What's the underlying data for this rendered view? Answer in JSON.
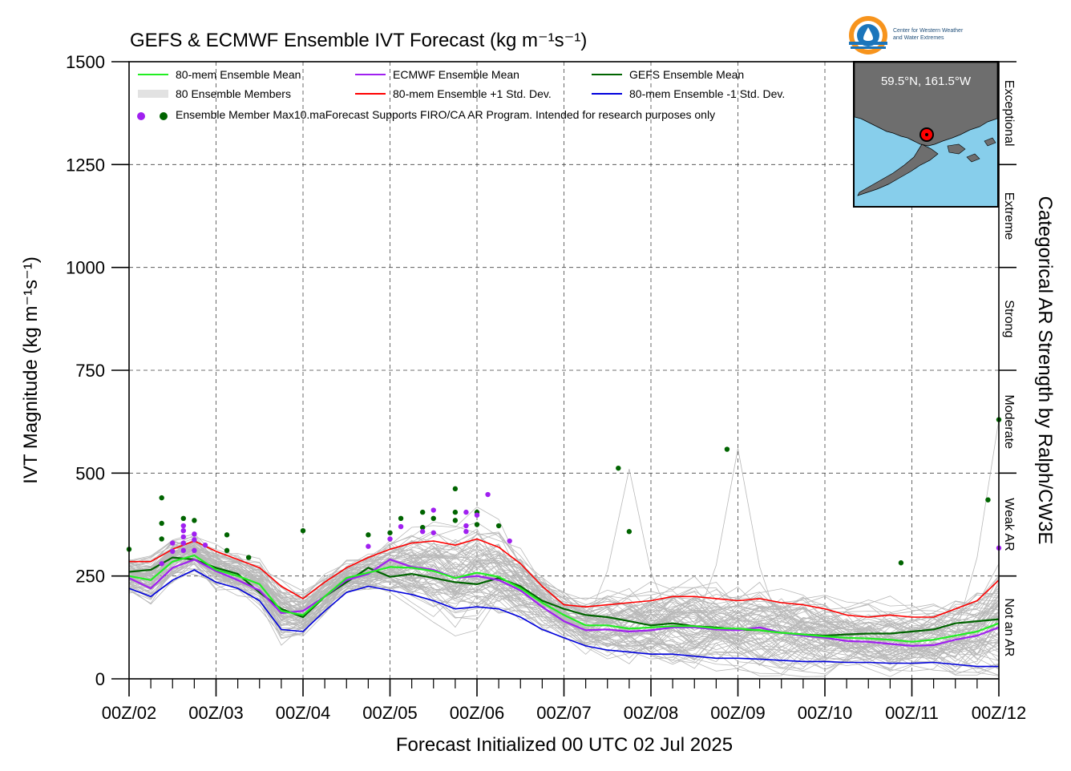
{
  "chart_data": {
    "type": "line",
    "title": "GEFS & ECMWF Ensemble IVT Forecast (kg m⁻¹s⁻¹)",
    "xlabel": "Forecast Initialized 00 UTC 02 Jul 2025",
    "ylabel": "IVT Magnitude (kg m⁻¹s⁻¹)",
    "right_label": "Categorical AR Strength by Ralph/CW3E",
    "ylim": [
      0,
      1500
    ],
    "xlim": [
      0,
      240
    ],
    "x_units": "forecast hours from 00 UTC 02 Jul 2025",
    "yticks": [
      0,
      250,
      500,
      750,
      1000,
      1250,
      1500
    ],
    "xticks": [
      0,
      24,
      48,
      72,
      96,
      120,
      144,
      168,
      192,
      216,
      240
    ],
    "xtick_labels": [
      "00Z/02",
      "00Z/03",
      "00Z/04",
      "00Z/05",
      "00Z/06",
      "00Z/07",
      "00Z/08",
      "00Z/09",
      "00Z/10",
      "00Z/11",
      "00Z/12"
    ],
    "grid": true,
    "legend_position": "top-left",
    "legend": [
      {
        "label": "80-mem Ensemble Mean",
        "color": "#22ee22",
        "kind": "line"
      },
      {
        "label": "ECMWF Ensemble Mean",
        "color": "#a020f0",
        "kind": "line"
      },
      {
        "label": "GEFS Ensemble Mean",
        "color": "#006400",
        "kind": "line"
      },
      {
        "label": "80 Ensemble Members",
        "color": "#b0b0b0",
        "kind": "multiline"
      },
      {
        "label": "80-mem Ensemble +1 Std. Dev.",
        "color": "#ff0000",
        "kind": "line"
      },
      {
        "label": "80-mem Ensemble -1 Std. Dev.",
        "color": "#0000dd",
        "kind": "line"
      },
      {
        "label": "Ensemble Member Max",
        "colors": [
          "#a020f0",
          "#006400"
        ],
        "kind": "dots"
      }
    ],
    "note": "10.maForecast Supports FIRO/CA AR Program. Intended for research purposes only",
    "categories": [
      {
        "label": "Not an AR",
        "range": [
          0,
          250
        ]
      },
      {
        "label": "Weak AR",
        "range": [
          250,
          500
        ]
      },
      {
        "label": "Moderate",
        "range": [
          500,
          750
        ]
      },
      {
        "label": "Strong",
        "range": [
          750,
          1000
        ]
      },
      {
        "label": "Extreme",
        "range": [
          1000,
          1250
        ]
      },
      {
        "label": "Exceptional",
        "range": [
          1250,
          1500
        ]
      }
    ],
    "x": [
      0,
      6,
      12,
      18,
      24,
      30,
      36,
      42,
      48,
      54,
      60,
      66,
      72,
      78,
      84,
      90,
      96,
      102,
      108,
      114,
      120,
      126,
      132,
      138,
      144,
      150,
      156,
      162,
      168,
      174,
      180,
      186,
      192,
      198,
      204,
      210,
      216,
      222,
      228,
      234,
      240
    ],
    "series": [
      {
        "name": "80-mem Ensemble Mean",
        "color": "#22ee22",
        "width": 2.2,
        "values": [
          250,
          240,
          285,
          300,
          265,
          250,
          230,
          165,
          155,
          200,
          245,
          258,
          272,
          270,
          262,
          245,
          258,
          248,
          220,
          185,
          155,
          130,
          130,
          122,
          125,
          128,
          128,
          123,
          122,
          118,
          112,
          108,
          103,
          100,
          98,
          95,
          90,
          95,
          105,
          115,
          135
        ]
      },
      {
        "name": "ECMWF Ensemble Mean",
        "color": "#a020f0",
        "width": 2.2,
        "values": [
          245,
          220,
          270,
          290,
          262,
          240,
          215,
          160,
          165,
          200,
          240,
          255,
          290,
          272,
          265,
          245,
          250,
          240,
          215,
          175,
          140,
          118,
          120,
          115,
          118,
          125,
          125,
          120,
          118,
          125,
          112,
          105,
          100,
          92,
          90,
          85,
          80,
          82,
          95,
          105,
          125
        ]
      },
      {
        "name": "GEFS Ensemble Mean",
        "color": "#006400",
        "width": 2.2,
        "values": [
          260,
          265,
          295,
          290,
          270,
          255,
          210,
          170,
          150,
          200,
          235,
          270,
          248,
          255,
          245,
          235,
          230,
          245,
          225,
          190,
          170,
          155,
          150,
          140,
          130,
          135,
          128,
          125,
          120,
          118,
          112,
          108,
          105,
          108,
          110,
          110,
          115,
          120,
          135,
          140,
          145
        ]
      },
      {
        "name": "80-mem Ensemble +1 Std. Dev.",
        "color": "#ff0000",
        "width": 1.6,
        "values": [
          285,
          285,
          315,
          335,
          310,
          290,
          270,
          225,
          195,
          235,
          270,
          295,
          315,
          330,
          335,
          325,
          340,
          320,
          280,
          225,
          180,
          175,
          180,
          185,
          190,
          200,
          200,
          195,
          190,
          195,
          185,
          180,
          170,
          155,
          150,
          155,
          150,
          150,
          170,
          190,
          240
        ]
      },
      {
        "name": "80-mem Ensemble -1 Std. Dev.",
        "color": "#0000dd",
        "width": 1.6,
        "values": [
          220,
          200,
          240,
          265,
          235,
          220,
          190,
          120,
          115,
          165,
          210,
          225,
          215,
          205,
          190,
          170,
          175,
          170,
          150,
          120,
          100,
          80,
          70,
          65,
          60,
          60,
          55,
          50,
          50,
          48,
          45,
          42,
          42,
          40,
          40,
          38,
          38,
          40,
          35,
          30,
          30
        ]
      }
    ],
    "members_band": {
      "count": 80,
      "color": "#b8b8b8",
      "center_series": 0,
      "spread_series": [
        3,
        4
      ],
      "spikes": [
        {
          "x": 138,
          "value": 510
        },
        {
          "x": 168,
          "value": 560
        },
        {
          "x": 240,
          "value": 630
        }
      ]
    },
    "member_max_points": [
      {
        "x": 0,
        "value": 315,
        "color": "#006400"
      },
      {
        "x": 9,
        "value": 440,
        "color": "#006400"
      },
      {
        "x": 9,
        "value": 378,
        "color": "#006400"
      },
      {
        "x": 9,
        "value": 340,
        "color": "#006400"
      },
      {
        "x": 9,
        "value": 280,
        "color": "#a020f0"
      },
      {
        "x": 12,
        "value": 330,
        "color": "#a020f0"
      },
      {
        "x": 12,
        "value": 310,
        "color": "#a020f0"
      },
      {
        "x": 15,
        "value": 390,
        "color": "#006400"
      },
      {
        "x": 15,
        "value": 372,
        "color": "#a020f0"
      },
      {
        "x": 15,
        "value": 360,
        "color": "#a020f0"
      },
      {
        "x": 15,
        "value": 345,
        "color": "#a020f0"
      },
      {
        "x": 15,
        "value": 330,
        "color": "#a020f0"
      },
      {
        "x": 15,
        "value": 312,
        "color": "#a020f0"
      },
      {
        "x": 18,
        "value": 385,
        "color": "#006400"
      },
      {
        "x": 18,
        "value": 352,
        "color": "#a020f0"
      },
      {
        "x": 18,
        "value": 338,
        "color": "#a020f0"
      },
      {
        "x": 18,
        "value": 312,
        "color": "#a020f0"
      },
      {
        "x": 21,
        "value": 325,
        "color": "#a020f0"
      },
      {
        "x": 27,
        "value": 350,
        "color": "#006400"
      },
      {
        "x": 27,
        "value": 312,
        "color": "#006400"
      },
      {
        "x": 33,
        "value": 295,
        "color": "#006400"
      },
      {
        "x": 48,
        "value": 360,
        "color": "#006400"
      },
      {
        "x": 66,
        "value": 350,
        "color": "#006400"
      },
      {
        "x": 66,
        "value": 322,
        "color": "#a020f0"
      },
      {
        "x": 72,
        "value": 355,
        "color": "#006400"
      },
      {
        "x": 72,
        "value": 340,
        "color": "#a020f0"
      },
      {
        "x": 75,
        "value": 390,
        "color": "#006400"
      },
      {
        "x": 75,
        "value": 370,
        "color": "#a020f0"
      },
      {
        "x": 81,
        "value": 405,
        "color": "#006400"
      },
      {
        "x": 81,
        "value": 368,
        "color": "#006400"
      },
      {
        "x": 81,
        "value": 358,
        "color": "#a020f0"
      },
      {
        "x": 84,
        "value": 410,
        "color": "#a020f0"
      },
      {
        "x": 84,
        "value": 390,
        "color": "#006400"
      },
      {
        "x": 84,
        "value": 355,
        "color": "#a020f0"
      },
      {
        "x": 90,
        "value": 462,
        "color": "#006400"
      },
      {
        "x": 90,
        "value": 405,
        "color": "#006400"
      },
      {
        "x": 90,
        "value": 385,
        "color": "#006400"
      },
      {
        "x": 93,
        "value": 405,
        "color": "#a020f0"
      },
      {
        "x": 93,
        "value": 372,
        "color": "#a020f0"
      },
      {
        "x": 93,
        "value": 358,
        "color": "#a020f0"
      },
      {
        "x": 96,
        "value": 405,
        "color": "#006400"
      },
      {
        "x": 96,
        "value": 398,
        "color": "#a020f0"
      },
      {
        "x": 96,
        "value": 375,
        "color": "#006400"
      },
      {
        "x": 99,
        "value": 448,
        "color": "#a020f0"
      },
      {
        "x": 102,
        "value": 372,
        "color": "#006400"
      },
      {
        "x": 105,
        "value": 335,
        "color": "#a020f0"
      },
      {
        "x": 135,
        "value": 512,
        "color": "#006400"
      },
      {
        "x": 138,
        "value": 358,
        "color": "#006400"
      },
      {
        "x": 165,
        "value": 558,
        "color": "#006400"
      },
      {
        "x": 213,
        "value": 282,
        "color": "#006400"
      },
      {
        "x": 237,
        "value": 435,
        "color": "#006400"
      },
      {
        "x": 240,
        "value": 630,
        "color": "#006400"
      },
      {
        "x": 240,
        "value": 318,
        "color": "#a020f0"
      }
    ],
    "inset_map": {
      "label": "59.5°N, 161.5°W",
      "land_color": "#6e6e6e",
      "water_color": "#87ceeb",
      "marker_color": "#ff0000"
    },
    "logo": {
      "line1": "Center for Western Weather",
      "line2": "and Water Extremes"
    }
  }
}
